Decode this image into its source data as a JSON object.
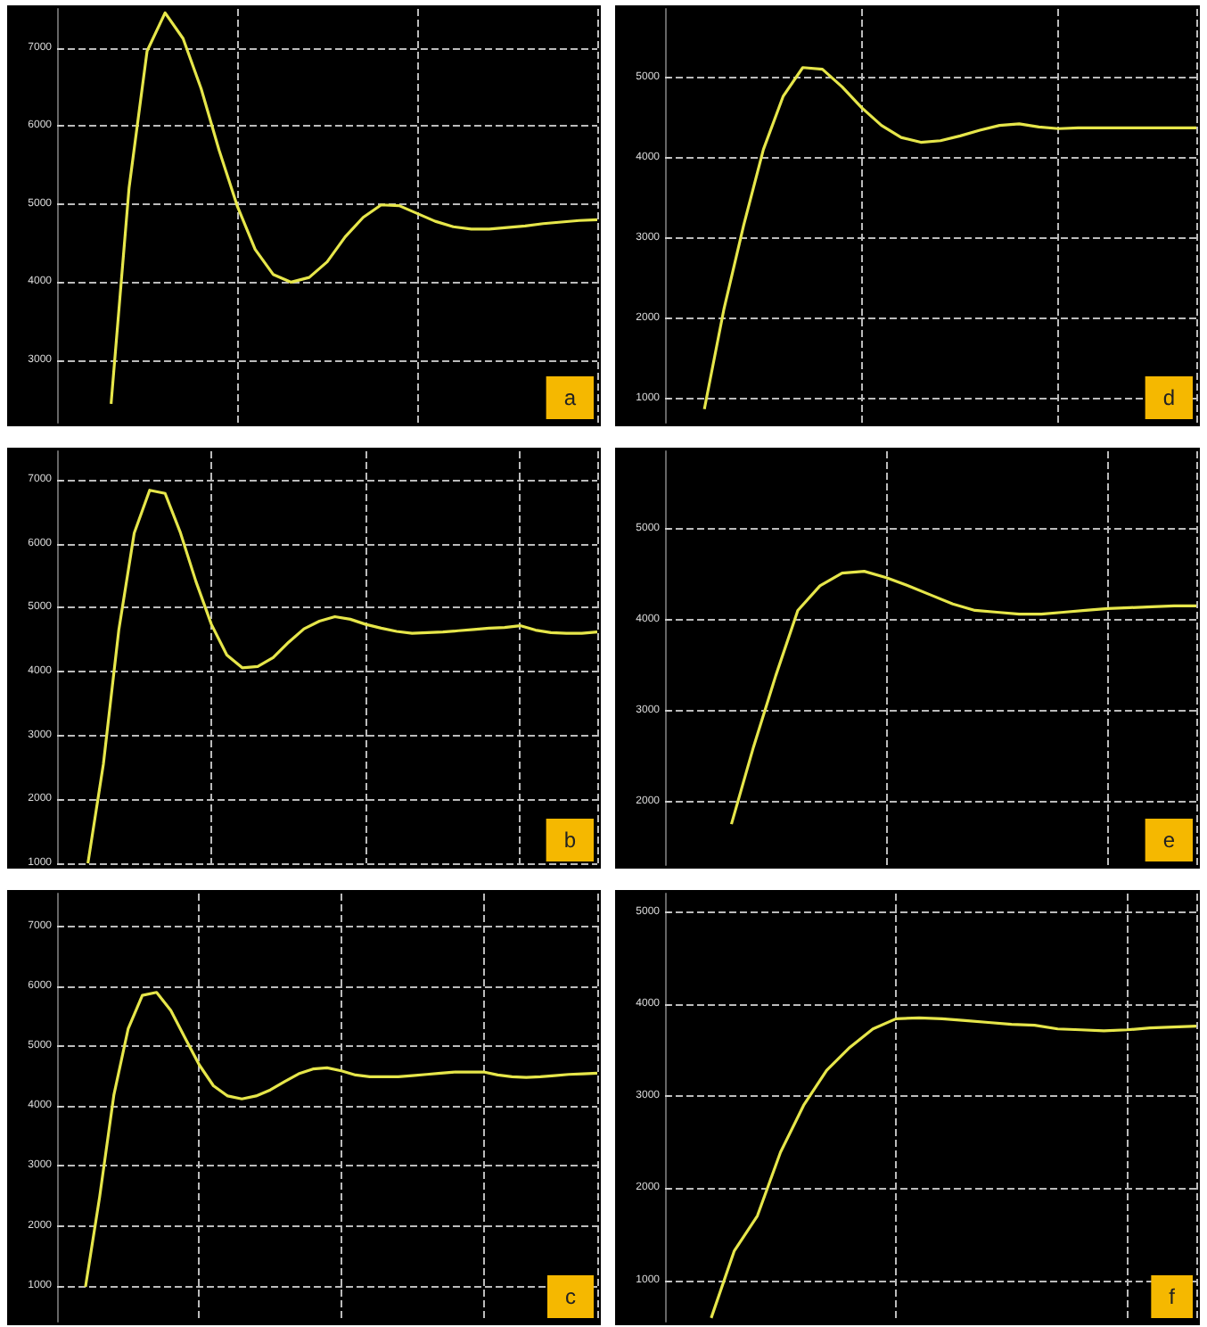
{
  "chart_data": [
    {
      "type": "line",
      "title": "a",
      "color": "#e6e64a",
      "grid": true,
      "tick_labels": "y",
      "ylim": [
        2200,
        7500
      ],
      "yticks": [
        3000,
        4000,
        5000,
        6000,
        7000
      ],
      "categories": [
        null,
        null,
        null,
        null,
        null,
        null,
        null,
        null,
        null,
        null,
        null,
        null,
        null,
        null,
        null,
        null,
        null,
        null,
        null,
        null,
        null,
        null,
        null,
        null,
        null,
        null,
        null,
        null,
        null,
        null,
        null
      ],
      "values": [
        null,
        null,
        null,
        2440,
        5210,
        6960,
        7450,
        7120,
        6480,
        5690,
        4980,
        4420,
        4100,
        4000,
        4060,
        4260,
        4580,
        4830,
        4990,
        4980,
        4880,
        4780,
        4710,
        4680,
        4680,
        4700,
        4720,
        4750,
        4770,
        4790,
        4800
      ]
    },
    {
      "type": "line",
      "title": "d",
      "color": "#e6e64a",
      "grid": true,
      "tick_labels": "y",
      "ylim": [
        700,
        5850
      ],
      "yticks": [
        1000,
        2000,
        3000,
        4000,
        5000
      ],
      "categories": [
        null,
        null,
        null,
        null,
        null,
        null,
        null,
        null,
        null,
        null,
        null,
        null,
        null,
        null,
        null,
        null,
        null,
        null,
        null,
        null,
        null,
        null,
        null,
        null,
        null,
        null,
        null,
        null
      ],
      "values": [
        null,
        null,
        870,
        2120,
        3160,
        4100,
        4760,
        5120,
        5100,
        4880,
        4620,
        4400,
        4250,
        4190,
        4210,
        4270,
        4340,
        4400,
        4420,
        4380,
        4360,
        4370,
        4370,
        4370,
        4370,
        4370,
        4370,
        4370
      ]
    },
    {
      "type": "line",
      "title": "b",
      "color": "#e6e64a",
      "grid": true,
      "tick_labels": "y",
      "ylim": [
        1000,
        7450
      ],
      "yticks": [
        1000,
        2000,
        3000,
        4000,
        5000,
        6000,
        7000
      ],
      "categories": [
        null,
        null,
        null,
        null,
        null,
        null,
        null,
        null,
        null,
        null,
        null,
        null,
        null,
        null,
        null,
        null,
        null,
        null,
        null,
        null,
        null,
        null,
        null,
        null,
        null,
        null,
        null,
        null,
        null,
        null,
        null,
        null,
        null,
        null,
        null,
        null
      ],
      "values": [
        null,
        null,
        1000,
        2550,
        4650,
        6170,
        6840,
        6790,
        6170,
        5410,
        4740,
        4260,
        4060,
        4080,
        4220,
        4460,
        4670,
        4790,
        4860,
        4820,
        4740,
        4680,
        4630,
        4600,
        4610,
        4620,
        4640,
        4660,
        4680,
        4690,
        4720,
        4650,
        4610,
        4600,
        4600,
        4620
      ]
    },
    {
      "type": "line",
      "title": "e",
      "color": "#e6e64a",
      "grid": true,
      "tick_labels": "y",
      "ylim": [
        1300,
        5850
      ],
      "yticks": [
        2000,
        3000,
        4000,
        5000
      ],
      "categories": [
        null,
        null,
        null,
        null,
        null,
        null,
        null,
        null,
        null,
        null,
        null,
        null,
        null,
        null,
        null,
        null,
        null,
        null,
        null,
        null,
        null,
        null,
        null,
        null,
        null
      ],
      "values": [
        null,
        null,
        null,
        1750,
        2600,
        3380,
        4100,
        4370,
        4510,
        4530,
        4460,
        4370,
        4270,
        4170,
        4100,
        4080,
        4060,
        4060,
        4080,
        4100,
        4120,
        4130,
        4140,
        4150,
        4150
      ]
    },
    {
      "type": "line",
      "title": "c",
      "color": "#e6e64a",
      "grid": true,
      "tick_labels": "y",
      "ylim": [
        400,
        7550
      ],
      "yticks": [
        1000,
        2000,
        3000,
        4000,
        5000,
        6000,
        7000
      ],
      "categories": [
        null,
        null,
        null,
        null,
        null,
        null,
        null,
        null,
        null,
        null,
        null,
        null,
        null,
        null,
        null,
        null,
        null,
        null,
        null,
        null,
        null,
        null,
        null,
        null,
        null,
        null,
        null,
        null,
        null,
        null,
        null,
        null,
        null,
        null,
        null,
        null,
        null,
        null,
        null
      ],
      "values": [
        null,
        null,
        980,
        2490,
        4190,
        5290,
        5850,
        5900,
        5600,
        5140,
        4690,
        4340,
        4170,
        4120,
        4170,
        4270,
        4410,
        4540,
        4620,
        4640,
        4590,
        4520,
        4490,
        4490,
        4490,
        4510,
        4530,
        4550,
        4570,
        4570,
        4570,
        4520,
        4490,
        4480,
        4490,
        4510,
        4530,
        4540,
        4550
      ]
    },
    {
      "type": "line",
      "title": "f",
      "color": "#e6e64a",
      "grid": true,
      "tick_labels": "y",
      "ylim": [
        550,
        5200
      ],
      "yticks": [
        1000,
        2000,
        3000,
        4000,
        5000
      ],
      "categories": [
        null,
        null,
        null,
        null,
        null,
        null,
        null,
        null,
        null,
        null,
        null,
        null,
        null,
        null,
        null,
        null,
        null,
        null,
        null,
        null,
        null,
        null,
        null,
        null
      ],
      "values": [
        null,
        null,
        590,
        1320,
        1700,
        2390,
        2900,
        3280,
        3530,
        3730,
        3840,
        3850,
        3840,
        3820,
        3800,
        3780,
        3770,
        3730,
        3720,
        3710,
        3720,
        3740,
        3750,
        3760
      ]
    }
  ]
}
